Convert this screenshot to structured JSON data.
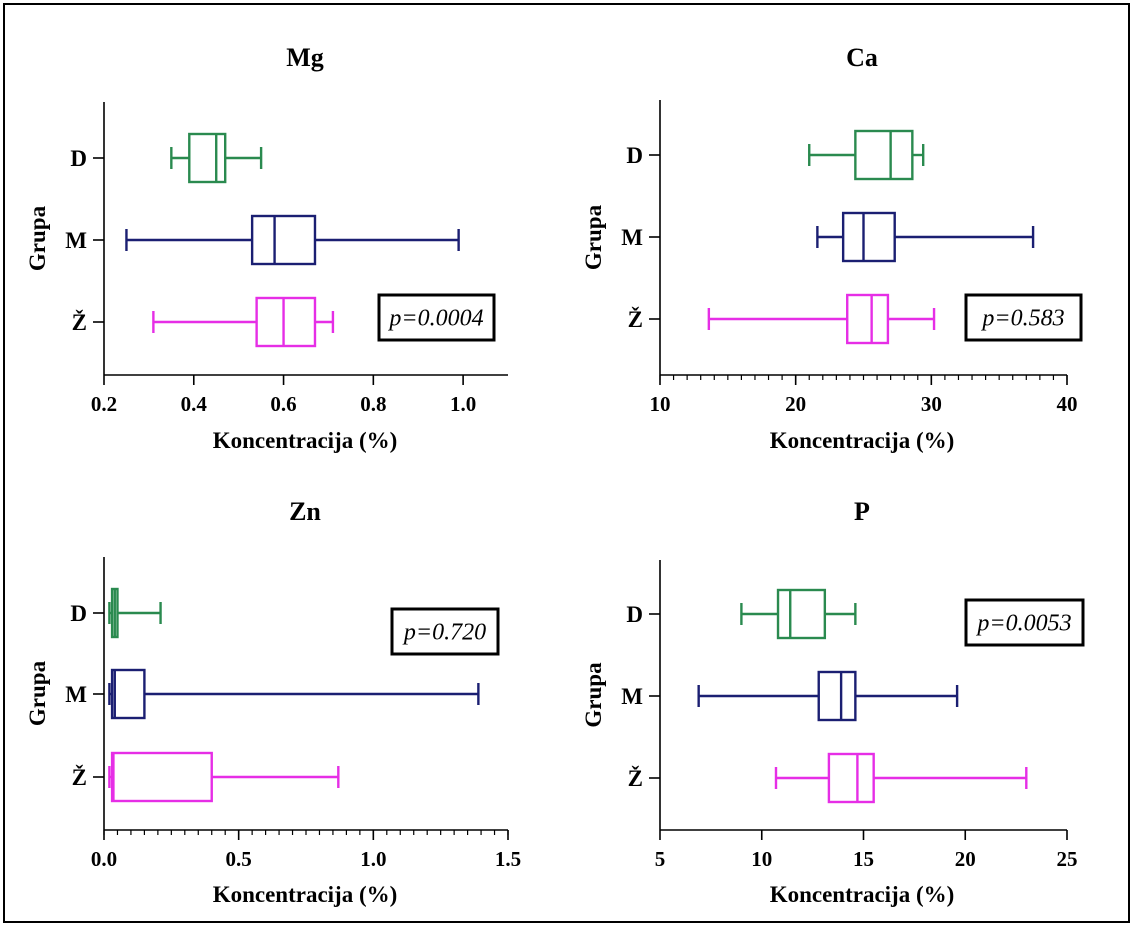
{
  "chart_data": [
    {
      "type": "box",
      "title": "Mg",
      "xlabel": "Koncentracija (%)",
      "ylabel": "Grupa",
      "xlim": [
        0.2,
        1.1
      ],
      "x_ticks": [
        "0.2",
        "0.4",
        "0.6",
        "0.8",
        "1.0"
      ],
      "x_tick_values": [
        0.2,
        0.4,
        0.6,
        0.8,
        1.0
      ],
      "minor_ticks": false,
      "p_value": "p=0.0004",
      "groups": [
        {
          "name": "D",
          "color": "#2a8a4f",
          "min": 0.35,
          "q1": 0.39,
          "median": 0.45,
          "q3": 0.47,
          "max": 0.55
        },
        {
          "name": "M",
          "color": "#1b1f72",
          "min": 0.25,
          "q1": 0.53,
          "median": 0.58,
          "q3": 0.67,
          "max": 0.99
        },
        {
          "name": "Ž",
          "color": "#e62ee6",
          "min": 0.31,
          "q1": 0.54,
          "median": 0.6,
          "q3": 0.67,
          "max": 0.71
        }
      ]
    },
    {
      "type": "box",
      "title": "Ca",
      "xlabel": "Koncentracija (%)",
      "ylabel": "Grupa",
      "xlim": [
        10,
        40
      ],
      "x_ticks": [
        "10",
        "20",
        "30",
        "40"
      ],
      "x_tick_values": [
        10,
        20,
        30,
        40
      ],
      "minor_ticks": true,
      "minor_step": 1,
      "p_value": "p=0.583",
      "groups": [
        {
          "name": "D",
          "color": "#2a8a4f",
          "min": 21.0,
          "q1": 24.4,
          "median": 27.0,
          "q3": 28.6,
          "max": 29.4
        },
        {
          "name": "M",
          "color": "#1b1f72",
          "min": 21.6,
          "q1": 23.5,
          "median": 25.0,
          "q3": 27.3,
          "max": 37.5
        },
        {
          "name": "Ž",
          "color": "#e62ee6",
          "min": 13.6,
          "q1": 23.8,
          "median": 25.6,
          "q3": 26.8,
          "max": 30.2
        }
      ]
    },
    {
      "type": "box",
      "title": "Zn",
      "xlabel": "Koncentracija (%)",
      "ylabel": "Grupa",
      "xlim": [
        0.0,
        1.5
      ],
      "x_ticks": [
        "0.0",
        "0.5",
        "1.0",
        "1.5"
      ],
      "x_tick_values": [
        0.0,
        0.5,
        1.0,
        1.5
      ],
      "minor_ticks": true,
      "minor_step": 0.05,
      "p_value": "p=0.720",
      "groups": [
        {
          "name": "D",
          "color": "#2a8a4f",
          "min": 0.02,
          "q1": 0.03,
          "median": 0.04,
          "q3": 0.05,
          "max": 0.21
        },
        {
          "name": "M",
          "color": "#1b1f72",
          "min": 0.02,
          "q1": 0.03,
          "median": 0.04,
          "q3": 0.15,
          "max": 1.39
        },
        {
          "name": "Ž",
          "color": "#e62ee6",
          "min": 0.02,
          "q1": 0.03,
          "median": 0.035,
          "q3": 0.4,
          "max": 0.87
        }
      ]
    },
    {
      "type": "box",
      "title": "P",
      "xlabel": "Koncentracija (%)",
      "ylabel": "Grupa",
      "xlim": [
        5,
        25
      ],
      "x_ticks": [
        "5",
        "10",
        "15",
        "20",
        "25"
      ],
      "x_tick_values": [
        5,
        10,
        15,
        20,
        25
      ],
      "minor_ticks": false,
      "p_value": "p=0.0053",
      "groups": [
        {
          "name": "D",
          "color": "#2a8a4f",
          "min": 9.0,
          "q1": 10.8,
          "median": 11.4,
          "q3": 13.1,
          "max": 14.6
        },
        {
          "name": "M",
          "color": "#1b1f72",
          "min": 6.9,
          "q1": 12.8,
          "median": 13.9,
          "q3": 14.6,
          "max": 19.6
        },
        {
          "name": "Ž",
          "color": "#e62ee6",
          "min": 10.7,
          "q1": 13.3,
          "median": 14.7,
          "q3": 15.5,
          "max": 23.0
        }
      ]
    }
  ]
}
